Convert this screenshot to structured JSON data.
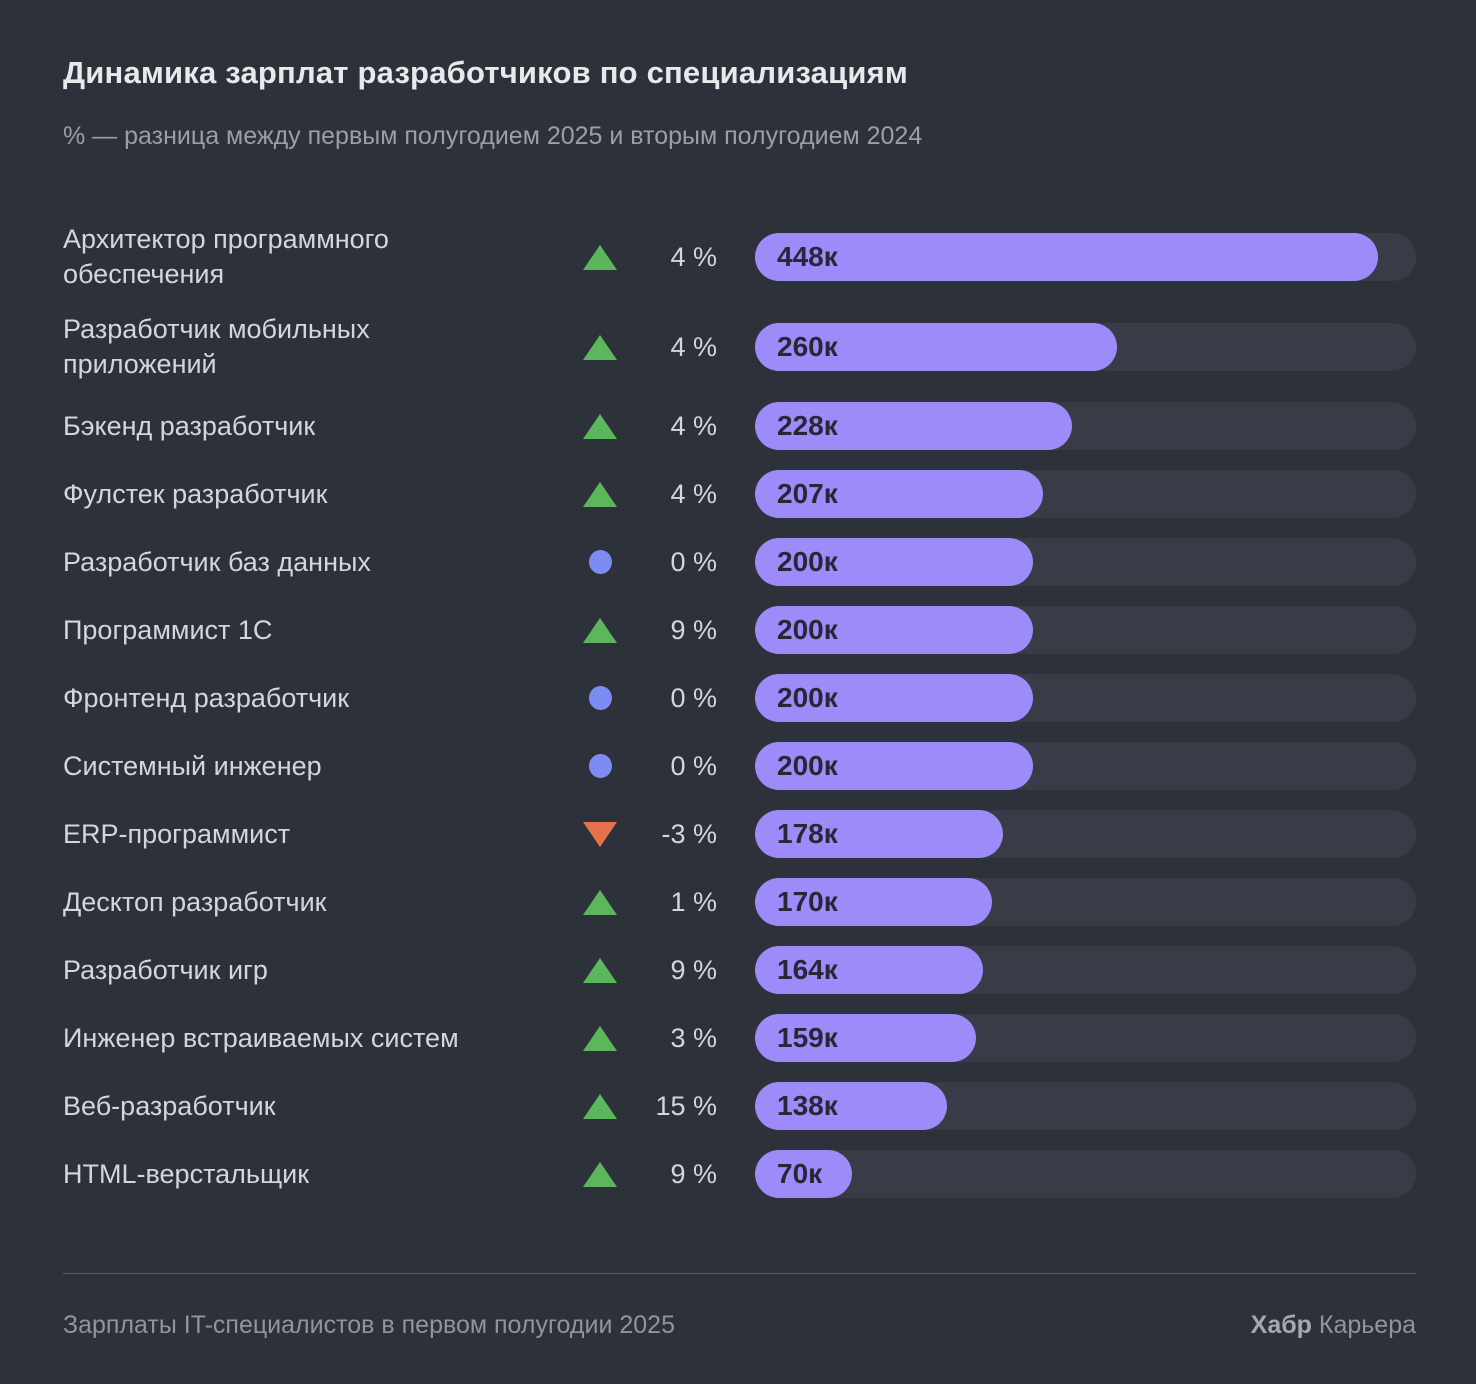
{
  "header": {
    "title": "Динамика зарплат разработчиков по специализациям",
    "subtitle": "% — разница между первым полугодием 2025 и вторым полугодием 2024"
  },
  "chart_data": {
    "type": "bar",
    "orientation": "horizontal",
    "title": "Динамика зарплат разработчиков по специализациям",
    "subtitle": "% — разница между первым полугодием 2025 и вторым полугодием 2024",
    "value_suffix": "к",
    "axis_max": 475,
    "grid": false,
    "legend": false,
    "colors": {
      "background": "#2d313a",
      "bar": "#9c8bf8",
      "bar_track": "#383c46",
      "bar_label": "#292638",
      "up": "#5cb75c",
      "down": "#e5724c",
      "flat": "#7d8cf2"
    },
    "rows": [
      {
        "label": "Архитектор программного\nобеспечения",
        "direction": "up",
        "change_pct": 4,
        "change_display": "4 %",
        "salary_k": 448,
        "bar_label": "448к"
      },
      {
        "label": "Разработчик мобильных\nприложений",
        "direction": "up",
        "change_pct": 4,
        "change_display": "4 %",
        "salary_k": 260,
        "bar_label": "260к"
      },
      {
        "label": "Бэкенд разработчик",
        "direction": "up",
        "change_pct": 4,
        "change_display": "4 %",
        "salary_k": 228,
        "bar_label": "228к"
      },
      {
        "label": "Фулстек разработчик",
        "direction": "up",
        "change_pct": 4,
        "change_display": "4 %",
        "salary_k": 207,
        "bar_label": "207к"
      },
      {
        "label": "Разработчик баз данных",
        "direction": "flat",
        "change_pct": 0,
        "change_display": "0 %",
        "salary_k": 200,
        "bar_label": "200к"
      },
      {
        "label": "Программист 1С",
        "direction": "up",
        "change_pct": 9,
        "change_display": "9 %",
        "salary_k": 200,
        "bar_label": "200к"
      },
      {
        "label": "Фронтенд разработчик",
        "direction": "flat",
        "change_pct": 0,
        "change_display": "0 %",
        "salary_k": 200,
        "bar_label": "200к"
      },
      {
        "label": "Системный инженер",
        "direction": "flat",
        "change_pct": 0,
        "change_display": "0 %",
        "salary_k": 200,
        "bar_label": "200к"
      },
      {
        "label": "ERP-программист",
        "direction": "down",
        "change_pct": -3,
        "change_display": "-3 %",
        "salary_k": 178,
        "bar_label": "178к"
      },
      {
        "label": "Десктоп разработчик",
        "direction": "up",
        "change_pct": 1,
        "change_display": "1 %",
        "salary_k": 170,
        "bar_label": "170к"
      },
      {
        "label": "Разработчик игр",
        "direction": "up",
        "change_pct": 9,
        "change_display": "9 %",
        "salary_k": 164,
        "bar_label": "164к"
      },
      {
        "label": "Инженер встраиваемых систем",
        "direction": "up",
        "change_pct": 3,
        "change_display": "3 %",
        "salary_k": 159,
        "bar_label": "159к"
      },
      {
        "label": "Веб-разработчик",
        "direction": "up",
        "change_pct": 15,
        "change_display": "15 %",
        "salary_k": 138,
        "bar_label": "138к"
      },
      {
        "label": "HTML-верстальщик",
        "direction": "up",
        "change_pct": 9,
        "change_display": "9 %",
        "salary_k": 70,
        "bar_label": "70к"
      }
    ]
  },
  "footer": {
    "caption": "Зарплаты IT-специалистов в первом полугодии 2025",
    "brand_bold": "Хабр",
    "brand_regular": "Карьера"
  }
}
